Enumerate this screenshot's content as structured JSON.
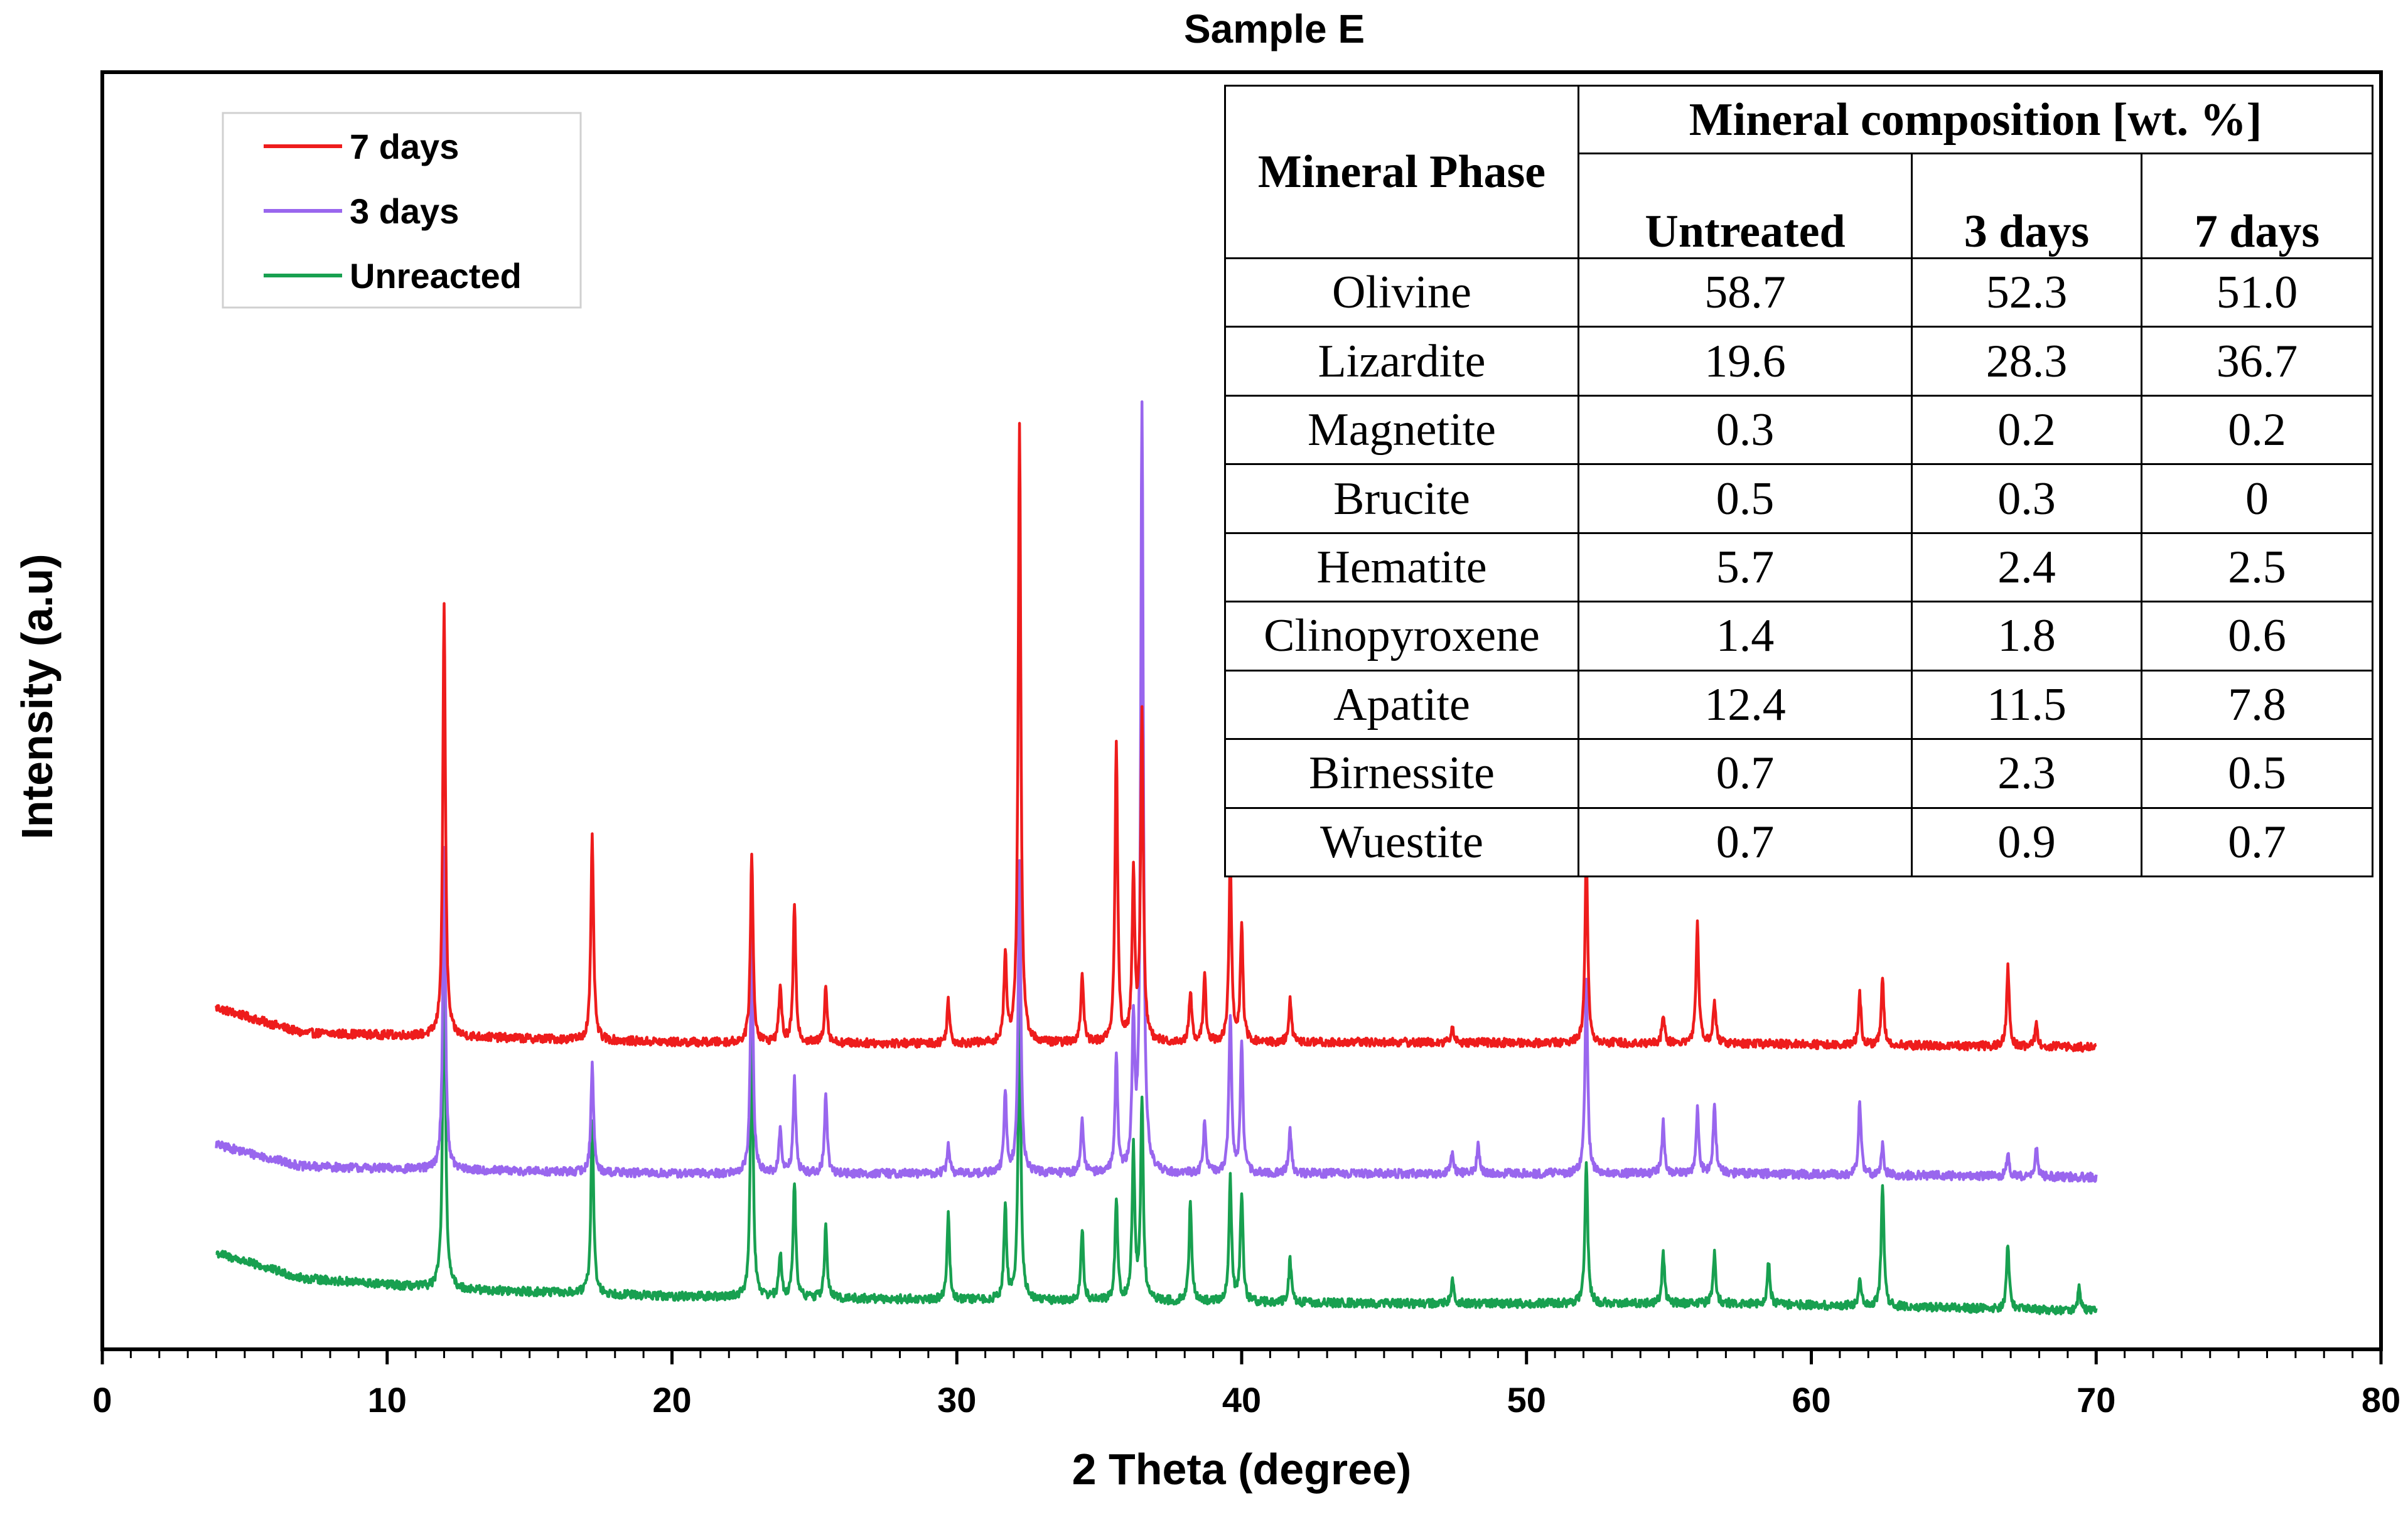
{
  "chart_data": {
    "type": "line",
    "title": "Sample E",
    "xlabel": "2 Theta (degree)",
    "ylabel": "Intensity (a.u)",
    "xlim": [
      0,
      80
    ],
    "x_ticks": [
      "0",
      "10",
      "20",
      "30",
      "40",
      "50",
      "60",
      "70",
      "80"
    ],
    "y_ticks": [],
    "data_range": [
      4,
      70
    ],
    "grid": false,
    "legend_position": "top-left",
    "series": [
      {
        "name": "7 days",
        "color": "#ee1c1c",
        "offset": 0.36,
        "baseline": [
          [
            4,
            0.07
          ],
          [
            7,
            0.035
          ],
          [
            12,
            0.03
          ],
          [
            20,
            0.022
          ],
          [
            30,
            0.02
          ],
          [
            45,
            0.022
          ],
          [
            57,
            0.02
          ],
          [
            70,
            0.015
          ]
        ],
        "peaks": [
          [
            12.0,
            0.6
          ],
          [
            17.2,
            0.28
          ],
          [
            22.8,
            0.26
          ],
          [
            23.8,
            0.08
          ],
          [
            24.3,
            0.19
          ],
          [
            25.4,
            0.08
          ],
          [
            29.7,
            0.06
          ],
          [
            31.7,
            0.12
          ],
          [
            32.2,
            0.86
          ],
          [
            34.4,
            0.1
          ],
          [
            35.6,
            0.41
          ],
          [
            36.2,
            0.23
          ],
          [
            36.5,
            0.46
          ],
          [
            38.2,
            0.07
          ],
          [
            38.7,
            0.09
          ],
          [
            39.6,
            0.25
          ],
          [
            40.0,
            0.16
          ],
          [
            41.7,
            0.06
          ],
          [
            47.4,
            0.02
          ],
          [
            52.1,
            0.27
          ],
          [
            54.8,
            0.04
          ],
          [
            56.0,
            0.17
          ],
          [
            56.6,
            0.06
          ],
          [
            61.7,
            0.07
          ],
          [
            62.5,
            0.09
          ],
          [
            66.9,
            0.11
          ],
          [
            67.9,
            0.03
          ]
        ]
      },
      {
        "name": "3 days",
        "color": "#9966ee",
        "offset": 0.18,
        "baseline": [
          [
            4,
            0.06
          ],
          [
            7,
            0.03
          ],
          [
            12,
            0.025
          ],
          [
            20,
            0.02
          ],
          [
            30,
            0.02
          ],
          [
            45,
            0.02
          ],
          [
            57,
            0.02
          ],
          [
            70,
            0.015
          ]
        ],
        "peaks": [
          [
            12.0,
            0.45
          ],
          [
            17.2,
            0.15
          ],
          [
            22.8,
            0.34
          ],
          [
            23.8,
            0.06
          ],
          [
            24.3,
            0.13
          ],
          [
            25.4,
            0.11
          ],
          [
            29.7,
            0.04
          ],
          [
            31.7,
            0.11
          ],
          [
            32.2,
            0.43
          ],
          [
            34.4,
            0.08
          ],
          [
            35.6,
            0.16
          ],
          [
            36.2,
            0.2
          ],
          [
            36.5,
            1.06
          ],
          [
            38.7,
            0.07
          ],
          [
            39.6,
            0.22
          ],
          [
            40.0,
            0.18
          ],
          [
            41.7,
            0.06
          ],
          [
            47.4,
            0.03
          ],
          [
            48.3,
            0.04
          ],
          [
            52.1,
            0.27
          ],
          [
            54.8,
            0.07
          ],
          [
            56.0,
            0.09
          ],
          [
            56.6,
            0.1
          ],
          [
            61.7,
            0.1
          ],
          [
            62.5,
            0.04
          ],
          [
            66.9,
            0.03
          ],
          [
            67.9,
            0.04
          ]
        ]
      },
      {
        "name": "Unreacted",
        "color": "#18a050",
        "offset": 0.0,
        "baseline": [
          [
            4,
            0.09
          ],
          [
            7,
            0.055
          ],
          [
            12,
            0.04
          ],
          [
            20,
            0.03
          ],
          [
            30,
            0.025
          ],
          [
            45,
            0.02
          ],
          [
            57,
            0.02
          ],
          [
            70,
            0.01
          ]
        ],
        "peaks": [
          [
            12.0,
            0.52
          ],
          [
            17.2,
            0.24
          ],
          [
            22.8,
            0.39
          ],
          [
            23.8,
            0.06
          ],
          [
            24.3,
            0.16
          ],
          [
            25.4,
            0.1
          ],
          [
            29.7,
            0.12
          ],
          [
            31.7,
            0.13
          ],
          [
            32.2,
            0.42
          ],
          [
            34.4,
            0.1
          ],
          [
            35.6,
            0.14
          ],
          [
            36.2,
            0.21
          ],
          [
            36.5,
            0.28
          ],
          [
            38.2,
            0.14
          ],
          [
            39.6,
            0.17
          ],
          [
            40.0,
            0.15
          ],
          [
            41.7,
            0.06
          ],
          [
            47.4,
            0.03
          ],
          [
            52.1,
            0.2
          ],
          [
            54.8,
            0.07
          ],
          [
            56.6,
            0.07
          ],
          [
            58.5,
            0.06
          ],
          [
            61.7,
            0.04
          ],
          [
            62.5,
            0.17
          ],
          [
            66.9,
            0.09
          ],
          [
            69.4,
            0.03
          ]
        ]
      }
    ]
  },
  "inset_table": {
    "header_phase": "Mineral Phase",
    "header_group": "Mineral composition [wt. %]",
    "columns": [
      "Untreated",
      "3 days",
      "7 days"
    ],
    "rows": [
      {
        "phase": "Olivine",
        "values": [
          "58.7",
          "52.3",
          "51.0"
        ]
      },
      {
        "phase": "Lizardite",
        "values": [
          "19.6",
          "28.3",
          "36.7"
        ]
      },
      {
        "phase": "Magnetite",
        "values": [
          "0.3",
          "0.2",
          "0.2"
        ]
      },
      {
        "phase": "Brucite",
        "values": [
          "0.5",
          "0.3",
          "0"
        ]
      },
      {
        "phase": "Hematite",
        "values": [
          "5.7",
          "2.4",
          "2.5"
        ]
      },
      {
        "phase": "Clinopyroxene",
        "values": [
          "1.4",
          "1.8",
          "0.6"
        ]
      },
      {
        "phase": "Apatite",
        "values": [
          "12.4",
          "11.5",
          "7.8"
        ]
      },
      {
        "phase": "Birnessite",
        "values": [
          "0.7",
          "2.3",
          "0.5"
        ]
      },
      {
        "phase": "Wuestite",
        "values": [
          "0.7",
          "0.9",
          "0.7"
        ]
      }
    ]
  }
}
